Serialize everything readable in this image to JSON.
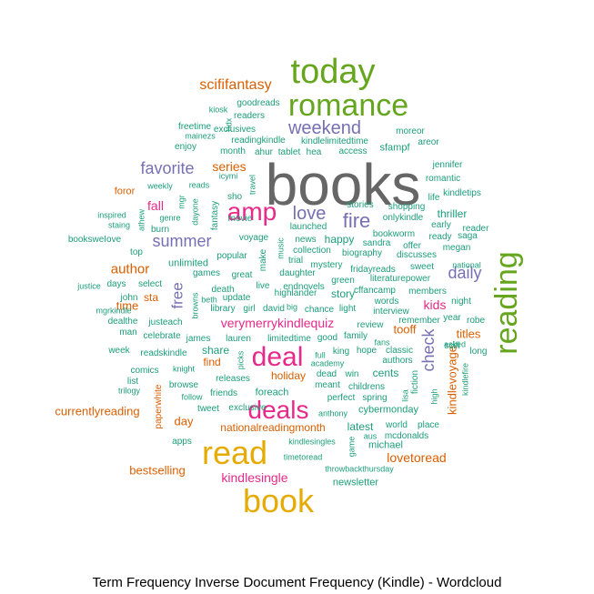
{
  "caption": "Term Frequency Inverse Document Frequency (Kindle) - Wordcloud",
  "palette": {
    "teal": "#1b9e77",
    "orange": "#d95f02",
    "purple": "#7570b3",
    "pink": "#e7298a",
    "green": "#66a61e",
    "gold": "#e6ab02",
    "brown": "#a6761d",
    "gray": "#666666"
  },
  "words": [
    {
      "text": "books",
      "color": "gray",
      "vertical": false
    },
    {
      "text": "today",
      "color": "green",
      "vertical": false
    },
    {
      "text": "romance",
      "color": "green",
      "vertical": false
    },
    {
      "text": "reading",
      "color": "green",
      "vertical": true
    },
    {
      "text": "read",
      "color": "gold",
      "vertical": false
    },
    {
      "text": "book",
      "color": "gold",
      "vertical": false
    },
    {
      "text": "deal",
      "color": "pink",
      "vertical": false
    },
    {
      "text": "deals",
      "color": "pink",
      "vertical": false
    },
    {
      "text": "amp",
      "color": "pink",
      "vertical": false
    },
    {
      "text": "love",
      "color": "purple",
      "vertical": false
    },
    {
      "text": "fire",
      "color": "purple",
      "vertical": false
    },
    {
      "text": "weekend",
      "color": "purple",
      "vertical": false
    },
    {
      "text": "favorite",
      "color": "purple",
      "vertical": false
    },
    {
      "text": "summer",
      "color": "purple",
      "vertical": false
    },
    {
      "text": "daily",
      "color": "purple",
      "vertical": false
    },
    {
      "text": "check",
      "color": "purple",
      "vertical": true
    },
    {
      "text": "free",
      "color": "purple",
      "vertical": true
    },
    {
      "text": "scififantasy",
      "color": "orange",
      "vertical": false
    },
    {
      "text": "series",
      "color": "orange",
      "vertical": false
    },
    {
      "text": "author",
      "color": "orange",
      "vertical": false
    },
    {
      "text": "fall",
      "color": "pink",
      "vertical": false
    },
    {
      "text": "foror",
      "color": "orange",
      "vertical": false
    },
    {
      "text": "verymerrykindlequiz",
      "color": "pink",
      "vertical": false
    },
    {
      "text": "kindlesingle",
      "color": "pink",
      "vertical": false
    },
    {
      "text": "kids",
      "color": "pink",
      "vertical": false
    },
    {
      "text": "nationalreadingmonth",
      "color": "orange",
      "vertical": false
    },
    {
      "text": "currentlyreading",
      "color": "orange",
      "vertical": false
    },
    {
      "text": "bestselling",
      "color": "orange",
      "vertical": false
    },
    {
      "text": "lovetoread",
      "color": "orange",
      "vertical": false
    },
    {
      "text": "kindlevoyage",
      "color": "orange",
      "vertical": true
    },
    {
      "text": "tooff",
      "color": "orange",
      "vertical": false
    },
    {
      "text": "titles",
      "color": "orange",
      "vertical": false
    },
    {
      "text": "holiday",
      "color": "orange",
      "vertical": false
    },
    {
      "text": "day",
      "color": "orange",
      "vertical": false
    },
    {
      "text": "time",
      "color": "orange",
      "vertical": false
    },
    {
      "text": "find",
      "color": "orange",
      "vertical": false
    },
    {
      "text": "sta",
      "color": "orange",
      "vertical": false
    },
    {
      "text": "paperwhite",
      "color": "orange",
      "vertical": true
    },
    {
      "text": "thriller",
      "color": "teal",
      "vertical": false
    },
    {
      "text": "happy",
      "color": "teal",
      "vertical": false
    },
    {
      "text": "story",
      "color": "teal",
      "vertical": false
    },
    {
      "text": "unlimited",
      "color": "teal",
      "vertical": false
    },
    {
      "text": "share",
      "color": "teal",
      "vertical": false
    },
    {
      "text": "foreach",
      "color": "teal",
      "vertical": false
    },
    {
      "text": "latest",
      "color": "teal",
      "vertical": false
    },
    {
      "text": "cents",
      "color": "teal",
      "vertical": false
    },
    {
      "text": "cybermonday",
      "color": "teal",
      "vertical": false
    },
    {
      "text": "michael",
      "color": "teal",
      "vertical": false
    },
    {
      "text": "fiction",
      "color": "teal",
      "vertical": true
    },
    {
      "text": "newsletter",
      "color": "teal",
      "vertical": false
    },
    {
      "text": "booksweIove",
      "color": "teal",
      "vertical": false
    },
    {
      "text": "voyage",
      "color": "teal",
      "vertical": false
    },
    {
      "text": "popular",
      "color": "teal",
      "vertical": false
    },
    {
      "text": "great",
      "color": "teal",
      "vertical": false
    },
    {
      "text": "games",
      "color": "teal",
      "vertical": false
    },
    {
      "text": "select",
      "color": "teal",
      "vertical": false
    },
    {
      "text": "justeach",
      "color": "teal",
      "vertical": false
    },
    {
      "text": "lauren",
      "color": "teal",
      "vertical": false
    },
    {
      "text": "limitedtime",
      "color": "teal",
      "vertical": false
    },
    {
      "text": "good",
      "color": "teal",
      "vertical": false
    },
    {
      "text": "family",
      "color": "teal",
      "vertical": false
    },
    {
      "text": "king",
      "color": "teal",
      "vertical": false
    },
    {
      "text": "hope",
      "color": "teal",
      "vertical": false
    },
    {
      "text": "classic",
      "color": "teal",
      "vertical": false
    },
    {
      "text": "authors",
      "color": "teal",
      "vertical": false
    },
    {
      "text": "comics",
      "color": "teal",
      "vertical": false
    },
    {
      "text": "browse",
      "color": "teal",
      "vertical": false
    },
    {
      "text": "friends",
      "color": "teal",
      "vertical": false
    },
    {
      "text": "releases",
      "color": "teal",
      "vertical": false
    },
    {
      "text": "dead",
      "color": "teal",
      "vertical": false
    },
    {
      "text": "win",
      "color": "teal",
      "vertical": false
    },
    {
      "text": "meant",
      "color": "teal",
      "vertical": false
    },
    {
      "text": "childrens",
      "color": "teal",
      "vertical": false
    },
    {
      "text": "perfect",
      "color": "teal",
      "vertical": false
    },
    {
      "text": "spring",
      "color": "teal",
      "vertical": false
    },
    {
      "text": "world",
      "color": "teal",
      "vertical": false
    },
    {
      "text": "place",
      "color": "teal",
      "vertical": false
    },
    {
      "text": "apps",
      "color": "teal",
      "vertical": false
    },
    {
      "text": "tweet",
      "color": "teal",
      "vertical": false
    },
    {
      "text": "exclusive",
      "color": "teal",
      "vertical": false
    },
    {
      "text": "exclusives",
      "color": "teal",
      "vertical": false
    },
    {
      "text": "freetime",
      "color": "teal",
      "vertical": false
    },
    {
      "text": "month",
      "color": "teal",
      "vertical": false
    },
    {
      "text": "access",
      "color": "teal",
      "vertical": false
    },
    {
      "text": "sfampf",
      "color": "teal",
      "vertical": false
    },
    {
      "text": "moreor",
      "color": "teal",
      "vertical": false
    },
    {
      "text": "areor",
      "color": "teal",
      "vertical": false
    },
    {
      "text": "goodreads",
      "color": "teal",
      "vertical": false
    },
    {
      "text": "readers",
      "color": "teal",
      "vertical": false
    },
    {
      "text": "kiosk",
      "color": "teal",
      "vertical": false
    },
    {
      "text": "mainezs",
      "color": "teal",
      "vertical": false
    },
    {
      "text": "enjoy",
      "color": "teal",
      "vertical": false
    },
    {
      "text": "readingkindle",
      "color": "teal",
      "vertical": false
    },
    {
      "text": "kindlelimitedtime",
      "color": "teal",
      "vertical": false
    },
    {
      "text": "ahur",
      "color": "teal",
      "vertical": false
    },
    {
      "text": "tablet",
      "color": "teal",
      "vertical": false
    },
    {
      "text": "hea",
      "color": "teal",
      "vertical": false
    },
    {
      "text": "jennifer",
      "color": "teal",
      "vertical": false
    },
    {
      "text": "romantic",
      "color": "teal",
      "vertical": false
    },
    {
      "text": "kindletips",
      "color": "teal",
      "vertical": false
    },
    {
      "text": "life",
      "color": "teal",
      "vertical": false
    },
    {
      "text": "stories",
      "color": "teal",
      "vertical": false
    },
    {
      "text": "onlykindle",
      "color": "teal",
      "vertical": false
    },
    {
      "text": "early",
      "color": "teal",
      "vertical": false
    },
    {
      "text": "reader",
      "color": "teal",
      "vertical": false
    },
    {
      "text": "ready",
      "color": "teal",
      "vertical": false
    },
    {
      "text": "saga",
      "color": "teal",
      "vertical": false
    },
    {
      "text": "megan",
      "color": "teal",
      "vertical": false
    },
    {
      "text": "bookworm",
      "color": "teal",
      "vertical": false
    },
    {
      "text": "sandra",
      "color": "teal",
      "vertical": false
    },
    {
      "text": "offer",
      "color": "teal",
      "vertical": false
    },
    {
      "text": "biography",
      "color": "teal",
      "vertical": false
    },
    {
      "text": "shopping",
      "color": "teal",
      "vertical": false
    },
    {
      "text": "discusses",
      "color": "teal",
      "vertical": false
    },
    {
      "text": "literaturepower",
      "color": "teal",
      "vertical": false
    },
    {
      "text": "sweet",
      "color": "teal",
      "vertical": false
    },
    {
      "text": "national",
      "color": "teal",
      "vertical": false
    },
    {
      "text": "fridayreads",
      "color": "teal",
      "vertical": false
    },
    {
      "text": "cffancamp",
      "color": "teal",
      "vertical": false
    },
    {
      "text": "members",
      "color": "teal",
      "vertical": false
    },
    {
      "text": "night",
      "color": "teal",
      "vertical": false
    },
    {
      "text": "interview",
      "color": "teal",
      "vertical": false
    },
    {
      "text": "review",
      "color": "teal",
      "vertical": false
    },
    {
      "text": "remember",
      "color": "teal",
      "vertical": false
    },
    {
      "text": "year",
      "color": "teal",
      "vertical": false
    },
    {
      "text": "robe",
      "color": "teal",
      "vertical": false
    },
    {
      "text": "scifi",
      "color": "teal",
      "vertical": false
    },
    {
      "text": "asked",
      "color": "teal",
      "vertical": false
    },
    {
      "text": "long",
      "color": "teal",
      "vertical": false
    },
    {
      "text": "kindlefire",
      "color": "teal",
      "vertical": true
    },
    {
      "text": "words",
      "color": "teal",
      "vertical": false
    },
    {
      "text": "fans",
      "color": "teal",
      "vertical": false
    },
    {
      "text": "light",
      "color": "teal",
      "vertical": false
    },
    {
      "text": "chance",
      "color": "teal",
      "vertical": false
    },
    {
      "text": "green",
      "color": "teal",
      "vertical": false
    },
    {
      "text": "highlander",
      "color": "teal",
      "vertical": false
    },
    {
      "text": "daughter",
      "color": "teal",
      "vertical": false
    },
    {
      "text": "mystery",
      "color": "teal",
      "vertical": false
    },
    {
      "text": "endnovels",
      "color": "teal",
      "vertical": false
    },
    {
      "text": "trial",
      "color": "teal",
      "vertical": false
    },
    {
      "text": "news",
      "color": "teal",
      "vertical": false
    },
    {
      "text": "collection",
      "color": "teal",
      "vertical": false
    },
    {
      "text": "launched",
      "color": "teal",
      "vertical": false
    },
    {
      "text": "movie",
      "color": "teal",
      "vertical": false
    },
    {
      "text": "death",
      "color": "teal",
      "vertical": false
    },
    {
      "text": "live",
      "color": "teal",
      "vertical": false
    },
    {
      "text": "update",
      "color": "teal",
      "vertical": false
    },
    {
      "text": "library",
      "color": "teal",
      "vertical": false
    },
    {
      "text": "beth",
      "color": "teal",
      "vertical": false
    },
    {
      "text": "girl",
      "color": "teal",
      "vertical": false
    },
    {
      "text": "david",
      "color": "teal",
      "vertical": false
    },
    {
      "text": "big",
      "color": "teal",
      "vertical": false
    },
    {
      "text": "james",
      "color": "teal",
      "vertical": false
    },
    {
      "text": "celebrate",
      "color": "teal",
      "vertical": false
    },
    {
      "text": "dealthe",
      "color": "teal",
      "vertical": false
    },
    {
      "text": "man",
      "color": "teal",
      "vertical": false
    },
    {
      "text": "week",
      "color": "teal",
      "vertical": false
    },
    {
      "text": "readskindle",
      "color": "teal",
      "vertical": false
    },
    {
      "text": "list",
      "color": "teal",
      "vertical": false
    },
    {
      "text": "trilogy",
      "color": "teal",
      "vertical": false
    },
    {
      "text": "knight",
      "color": "teal",
      "vertical": false
    },
    {
      "text": "follow",
      "color": "teal",
      "vertical": false
    },
    {
      "text": "mgrkindle",
      "color": "teal",
      "vertical": false
    },
    {
      "text": "john",
      "color": "teal",
      "vertical": false
    },
    {
      "text": "days",
      "color": "teal",
      "vertical": false
    },
    {
      "text": "justice",
      "color": "teal",
      "vertical": false
    },
    {
      "text": "top",
      "color": "teal",
      "vertical": false
    },
    {
      "text": "inspired",
      "color": "teal",
      "vertical": false
    },
    {
      "text": "staing",
      "color": "teal",
      "vertical": false
    },
    {
      "text": "genre",
      "color": "teal",
      "vertical": false
    },
    {
      "text": "burn",
      "color": "teal",
      "vertical": false
    },
    {
      "text": "weekly",
      "color": "teal",
      "vertical": false
    },
    {
      "text": "reads",
      "color": "teal",
      "vertical": false
    },
    {
      "text": "icymi",
      "color": "teal",
      "vertical": false
    },
    {
      "text": "sho",
      "color": "teal",
      "vertical": false
    },
    {
      "text": "academy",
      "color": "teal",
      "vertical": false
    },
    {
      "text": "full",
      "color": "teal",
      "vertical": false
    },
    {
      "text": "anthony",
      "color": "teal",
      "vertical": false
    },
    {
      "text": "aus",
      "color": "teal",
      "vertical": false
    },
    {
      "text": "mcdonalds",
      "color": "teal",
      "vertical": false
    },
    {
      "text": "kindlesingles",
      "color": "teal",
      "vertical": false
    },
    {
      "text": "timetoread",
      "color": "teal",
      "vertical": false
    },
    {
      "text": "throwbackthursday",
      "color": "teal",
      "vertical": false
    },
    {
      "text": "picks",
      "color": "teal",
      "vertical": true
    },
    {
      "text": "lisa",
      "color": "teal",
      "vertical": true
    },
    {
      "text": "high",
      "color": "teal",
      "vertical": true
    },
    {
      "text": "game",
      "color": "teal",
      "vertical": true
    },
    {
      "text": "fantasy",
      "color": "teal",
      "vertical": true
    },
    {
      "text": "dayone",
      "color": "teal",
      "vertical": true
    },
    {
      "text": "mgr",
      "color": "teal",
      "vertical": true
    },
    {
      "text": "athew",
      "color": "teal",
      "vertical": true
    },
    {
      "text": "travel",
      "color": "teal",
      "vertical": true
    },
    {
      "text": "hdx",
      "color": "teal",
      "vertical": true
    },
    {
      "text": "make",
      "color": "teal",
      "vertical": true
    },
    {
      "text": "music",
      "color": "teal",
      "vertical": true
    },
    {
      "text": "browns",
      "color": "teal",
      "vertical": true
    }
  ]
}
